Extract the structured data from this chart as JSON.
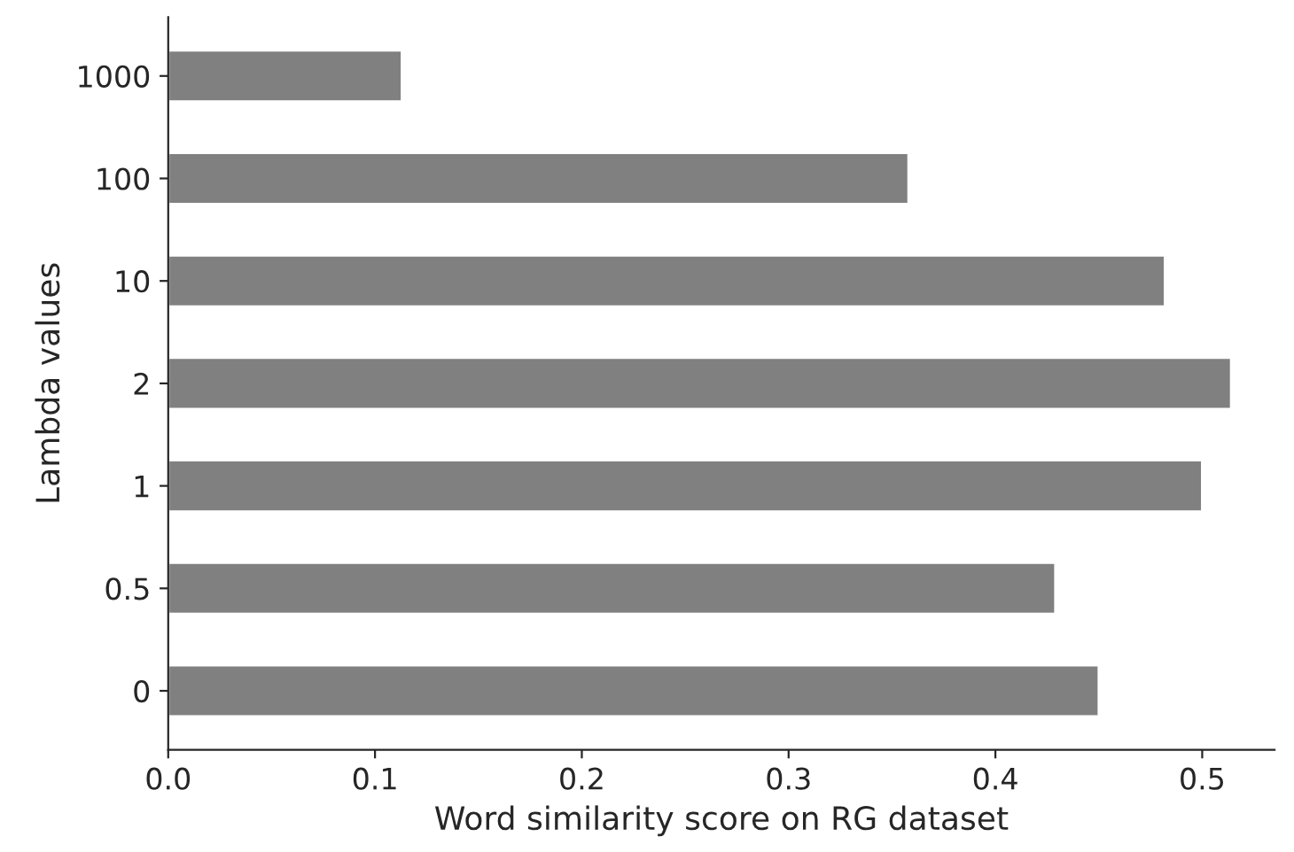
{
  "chart_data": {
    "type": "bar",
    "orientation": "horizontal",
    "xlabel": "Word similarity score on RG dataset",
    "ylabel": "Lambda values",
    "categories": [
      "1000",
      "100",
      "10",
      "2",
      "1",
      "0.5",
      "0"
    ],
    "values": [
      0.113,
      0.358,
      0.482,
      0.514,
      0.5,
      0.429,
      0.45
    ],
    "color": "#808080",
    "xlim": [
      0.0,
      0.535
    ],
    "xticks": [
      {
        "value": 0,
        "label": "0.0"
      },
      0.1,
      0.2,
      0.3,
      0.4,
      0.5
    ],
    "grid": false
  }
}
